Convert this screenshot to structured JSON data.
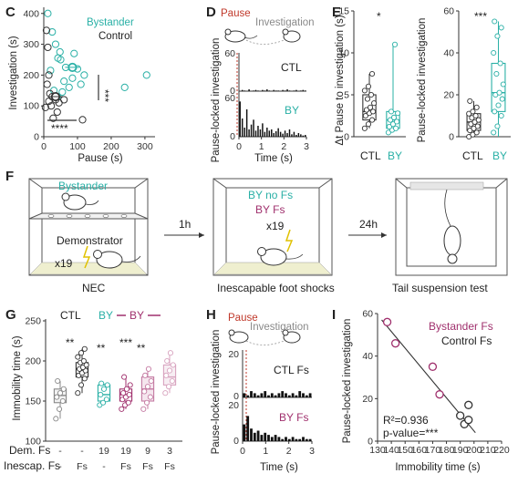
{
  "colors": {
    "teal": "#2ab0a6",
    "ctl": "#333333",
    "pink": "#a0306d",
    "pink_light": "#d8a3bf",
    "red": "#c0392b",
    "gray": "#8a8a8a"
  },
  "panels": {
    "C": {
      "letter": "C",
      "legend": [
        "Bystander",
        "Control"
      ],
      "xlabel": "Pause (s)",
      "ylabel": "Investigation (s)",
      "xticks": [
        "0",
        "100",
        "200",
        "300"
      ],
      "yticks": [
        "0",
        "100",
        "200",
        "300",
        "400"
      ],
      "sig_y": "***",
      "sig_x": "****"
    },
    "D": {
      "letter": "D",
      "title_pause": "Pause",
      "title_investigation": "Investigation",
      "ylabel": "Pause-locked investigation",
      "xlabel": "Time (s)",
      "xticks": [
        "0",
        "1",
        "2",
        "3"
      ],
      "ctl_label": "CTL",
      "by_label": "BY",
      "yticks_top": [
        "60",
        "0"
      ],
      "yticks_bottom": [
        "60",
        "0"
      ]
    },
    "E": {
      "letter": "E",
      "left_ylabel": "Δt Pause to investigation (s)",
      "left_yticks": [
        "0",
        "5",
        "10",
        "15"
      ],
      "left_sig": "*",
      "right_ylabel": "Pause-locked investigation",
      "right_yticks": [
        "0",
        "20",
        "40",
        "60"
      ],
      "right_sig": "***",
      "groups": [
        "CTL",
        "BY"
      ]
    },
    "F": {
      "letter": "F",
      "bystander": "Bystander",
      "demonstrator": "Demonstrator",
      "x19a": "x19",
      "nec": "NEC",
      "arrow1": "1h",
      "by_no_fs": "BY no Fs",
      "by_fs": "BY Fs",
      "x19b": "x19",
      "shock_caption": "Inescapable foot shocks",
      "arrow2": "24h",
      "tail_caption": "Tail suspension test"
    },
    "G": {
      "letter": "G",
      "legend_ctl": "CTL",
      "legend_by1": "BY",
      "legend_by2": "BY",
      "ylabel": "Immobility time (s)",
      "yticks": [
        "100",
        "150",
        "200",
        "250"
      ],
      "sig": [
        "**",
        "**",
        "***",
        "**"
      ],
      "row1_label": "Dem. Fs",
      "row2_label": "Inescap. Fs",
      "row1": [
        "-",
        "-",
        "19",
        "19",
        "9",
        "3"
      ],
      "row2": [
        "-",
        "Fs",
        "-",
        "Fs",
        "Fs",
        "Fs"
      ]
    },
    "H": {
      "letter": "H",
      "title_pause": "Pause",
      "title_investigation": "Investigation",
      "ylabel": "Pause-locked investigation",
      "xlabel": "Time (s)",
      "xticks": [
        "0",
        "1",
        "2",
        "3"
      ],
      "ctl_label": "CTL Fs",
      "by_label": "BY Fs",
      "yticks": [
        "20",
        "0"
      ]
    },
    "I": {
      "letter": "I",
      "legend": [
        "Bystander Fs",
        "Control Fs"
      ],
      "ylabel": "Pause-locked investigation",
      "xlabel": "Immobility time (s)",
      "xticks": [
        "130",
        "140",
        "150",
        "160",
        "170",
        "180",
        "190",
        "200",
        "210",
        "220"
      ],
      "yticks": [
        "0",
        "20",
        "40",
        "60"
      ],
      "stat1": "R²=0.936",
      "stat2": "p-value=***"
    }
  },
  "chart_data": [
    {
      "panel": "C",
      "type": "scatter",
      "xlabel": "Pause (s)",
      "ylabel": "Investigation (s)",
      "xlim": [
        0,
        330
      ],
      "ylim": [
        0,
        420
      ],
      "series": [
        {
          "name": "Bystander",
          "color": "#2ab0a6",
          "points": [
            [
              12,
              400
            ],
            [
              25,
              340
            ],
            [
              35,
              300
            ],
            [
              42,
              255
            ],
            [
              20,
              215
            ],
            [
              50,
              250
            ],
            [
              65,
              225
            ],
            [
              90,
              270
            ],
            [
              100,
              220
            ],
            [
              110,
              170
            ],
            [
              120,
              200
            ],
            [
              60,
              180
            ],
            [
              75,
              160
            ],
            [
              30,
              150
            ],
            [
              40,
              130
            ],
            [
              55,
              145
            ],
            [
              85,
              190
            ],
            [
              240,
              160
            ],
            [
              305,
              200
            ],
            [
              48,
              275
            ]
          ],
          "means": [
            [
              85,
              225
            ]
          ]
        },
        {
          "name": "Control",
          "color": "#333333",
          "points": [
            [
              8,
              345
            ],
            [
              12,
              290
            ],
            [
              15,
              200
            ],
            [
              10,
              170
            ],
            [
              18,
              140
            ],
            [
              25,
              130
            ],
            [
              35,
              120
            ],
            [
              45,
              110
            ],
            [
              28,
              60
            ],
            [
              22,
              100
            ],
            [
              40,
              80
            ],
            [
              15,
              115
            ],
            [
              5,
              95
            ],
            [
              60,
              120
            ],
            [
              115,
              55
            ]
          ],
          "means": [
            [
              35,
              130
            ]
          ]
        }
      ]
    },
    {
      "panel": "D",
      "type": "bar",
      "xlabel": "Time (s)",
      "ylabel": "Pause-locked investigation",
      "xlim": [
        0,
        3
      ],
      "series": [
        {
          "name": "CTL",
          "values": [
            0,
            2,
            1,
            0,
            3,
            0,
            1,
            2,
            1,
            0,
            2,
            1,
            3,
            1,
            0,
            2,
            1,
            1,
            0,
            2,
            1,
            3,
            1,
            0,
            1,
            2,
            0,
            1,
            2,
            1
          ]
        },
        {
          "name": "BY",
          "values": [
            58,
            30,
            15,
            45,
            12,
            20,
            28,
            10,
            18,
            12,
            22,
            8,
            15,
            10,
            12,
            6,
            9,
            14,
            8,
            5,
            10,
            6,
            12,
            4,
            8,
            3,
            6,
            4,
            2,
            3
          ]
        }
      ]
    },
    {
      "panel": "E-left",
      "type": "box",
      "ylabel": "Δt Pause to investigation (s)",
      "ylim": [
        0,
        15
      ],
      "categories": [
        "CTL",
        "BY"
      ],
      "boxes": [
        {
          "name": "CTL",
          "min": 1.0,
          "q1": 2.0,
          "median": 3.0,
          "q3": 5.0,
          "max": 7.5,
          "points": [
            1.0,
            1.5,
            2.0,
            2.5,
            2.8,
            3.0,
            3.2,
            3.5,
            4.0,
            4.5,
            5.0,
            5.5,
            6.0,
            7.5
          ]
        },
        {
          "name": "BY",
          "min": 0.5,
          "q1": 1.0,
          "median": 2.0,
          "q3": 3.0,
          "max": 11.0,
          "points": [
            0.5,
            0.8,
            1.0,
            1.2,
            1.5,
            1.8,
            2.0,
            2.3,
            2.8,
            3.0,
            11.0
          ]
        }
      ]
    },
    {
      "panel": "E-right",
      "type": "box",
      "ylabel": "Pause-locked investigation",
      "ylim": [
        0,
        60
      ],
      "categories": [
        "CTL",
        "BY"
      ],
      "boxes": [
        {
          "name": "CTL",
          "min": 0,
          "q1": 3,
          "median": 7,
          "q3": 11,
          "max": 17,
          "points": [
            0,
            1,
            2,
            3,
            4,
            5,
            6,
            7,
            8,
            9,
            10,
            11,
            12,
            14,
            17
          ]
        },
        {
          "name": "BY",
          "min": 0,
          "q1": 12,
          "median": 21,
          "q3": 35,
          "max": 55,
          "points": [
            2,
            5,
            10,
            12,
            15,
            18,
            20,
            21,
            25,
            30,
            35,
            40,
            48,
            52,
            55
          ]
        }
      ]
    },
    {
      "panel": "G",
      "type": "box",
      "ylabel": "Immobility time (s)",
      "ylim": [
        100,
        250
      ],
      "categories": [
        "-/-",
        "-/Fs",
        "19/-",
        "19/Fs",
        "9/Fs",
        "3/Fs"
      ],
      "boxes": [
        {
          "name": "CTL",
          "min": 128,
          "q1": 148,
          "median": 157,
          "q3": 165,
          "max": 175,
          "points": [
            128,
            140,
            150,
            155,
            160,
            165,
            175
          ]
        },
        {
          "name": "CTL Fs",
          "min": 160,
          "q1": 180,
          "median": 190,
          "q3": 198,
          "max": 215,
          "points": [
            160,
            170,
            178,
            182,
            185,
            188,
            190,
            192,
            195,
            198,
            200,
            205,
            210,
            215
          ]
        },
        {
          "name": "BY no Fs",
          "min": 145,
          "q1": 150,
          "median": 158,
          "q3": 170,
          "max": 172,
          "points": [
            145,
            148,
            152,
            158,
            165,
            170,
            172
          ]
        },
        {
          "name": "BY Fs 19",
          "min": 140,
          "q1": 150,
          "median": 158,
          "q3": 165,
          "max": 180,
          "points": [
            140,
            145,
            148,
            152,
            155,
            158,
            160,
            165,
            170,
            180
          ]
        },
        {
          "name": "BY Fs 9",
          "min": 140,
          "q1": 150,
          "median": 165,
          "q3": 180,
          "max": 190,
          "points": [
            140,
            148,
            155,
            162,
            168,
            175,
            182,
            190
          ]
        },
        {
          "name": "BY Fs 3",
          "min": 160,
          "q1": 170,
          "median": 180,
          "q3": 195,
          "max": 210,
          "points": [
            160,
            168,
            175,
            182,
            188,
            195,
            200,
            210
          ]
        }
      ]
    },
    {
      "panel": "H",
      "type": "bar",
      "xlabel": "Time (s)",
      "ylabel": "Pause-locked investigation",
      "xlim": [
        0,
        3
      ],
      "series": [
        {
          "name": "CTL Fs",
          "values": [
            2,
            1,
            3,
            2,
            1,
            2,
            3,
            1,
            2,
            1,
            2,
            3,
            2,
            1,
            2,
            1,
            3,
            2,
            1,
            2
          ]
        },
        {
          "name": "BY Fs",
          "values": [
            8,
            12,
            6,
            4,
            5,
            3,
            4,
            3,
            2,
            3,
            2,
            1,
            2,
            1,
            2,
            1,
            1,
            2,
            1,
            1
          ]
        }
      ]
    },
    {
      "panel": "I",
      "type": "scatter",
      "xlabel": "Immobility time (s)",
      "ylabel": "Pause-locked investigation",
      "xlim": [
        130,
        220
      ],
      "ylim": [
        0,
        60
      ],
      "series": [
        {
          "name": "Bystander Fs",
          "color": "#a0306d",
          "points": [
            [
              137,
              56
            ],
            [
              143,
              46
            ],
            [
              170,
              35
            ],
            [
              175,
              22
            ]
          ]
        },
        {
          "name": "Control Fs",
          "color": "#333333",
          "points": [
            [
              190,
              12
            ],
            [
              193,
              8
            ],
            [
              196,
              10
            ],
            [
              196,
              17
            ]
          ]
        }
      ],
      "fit_line": [
        [
          133,
          57
        ],
        [
          201,
          4
        ]
      ]
    }
  ]
}
